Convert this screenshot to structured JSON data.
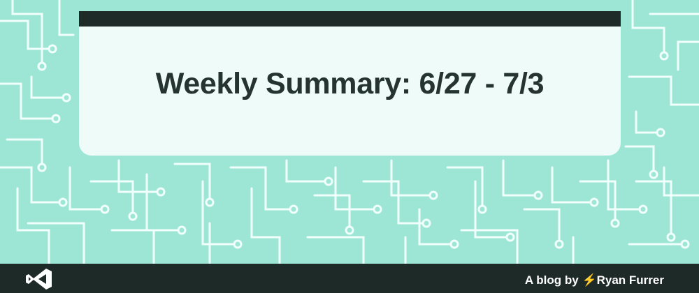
{
  "banner": {
    "title": "Weekly Summary: 6/27 - 7/3"
  },
  "footer": {
    "logo_icon": "vscode-logo-icon",
    "byline_prefix": "A blog by",
    "bolt_glyph": "⚡",
    "author": "Ryan Furrer"
  },
  "colors": {
    "background": "#9de6d6",
    "circuit_lines": "#f0fffb",
    "card": "#effbf8",
    "dark": "#1e2a27",
    "title_text": "#253431",
    "bolt": "#f7b500"
  }
}
